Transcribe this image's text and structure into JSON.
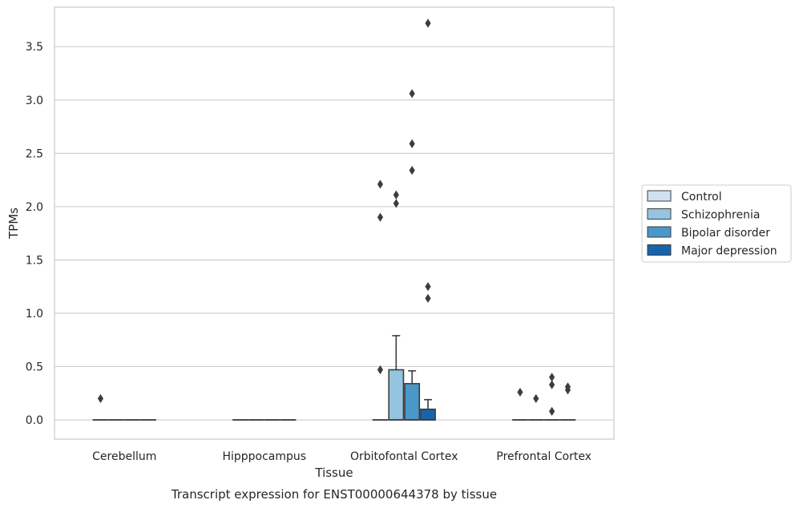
{
  "chart_data": {
    "type": "box",
    "xlabel": "Tissue",
    "ylabel": "TPMs",
    "caption": "Transcript expression for ENST00000644378 by tissue",
    "ylim": [
      -0.18,
      3.87
    ],
    "yticks": [
      0.0,
      0.5,
      1.0,
      1.5,
      2.0,
      2.5,
      3.0,
      3.5
    ],
    "ytick_labels": [
      "0.0",
      "0.5",
      "1.0",
      "1.5",
      "2.0",
      "2.5",
      "3.0",
      "3.5"
    ],
    "grid": "y",
    "legend_position": "right",
    "categories": [
      "Cerebellum",
      "Hipppocampus",
      "Orbitofontal Cortex",
      "Prefrontal Cortex"
    ],
    "series": [
      {
        "name": "Control",
        "color": "#d0e1f2",
        "boxes": [
          {
            "q1": 0,
            "median": 0,
            "q3": 0,
            "whisker_low": 0,
            "whisker_high": 0,
            "outliers": [
              0.2
            ]
          },
          {
            "q1": 0,
            "median": 0,
            "q3": 0,
            "whisker_low": 0,
            "whisker_high": 0,
            "outliers": []
          },
          {
            "q1": 0,
            "median": 0,
            "q3": 0,
            "whisker_low": 0,
            "whisker_high": 0,
            "outliers": [
              0.47,
              1.9,
              2.21
            ]
          },
          {
            "q1": 0,
            "median": 0,
            "q3": 0,
            "whisker_low": 0,
            "whisker_high": 0,
            "outliers": [
              0.26
            ]
          }
        ]
      },
      {
        "name": "Schizophrenia",
        "color": "#94c4df",
        "boxes": [
          {
            "q1": 0,
            "median": 0,
            "q3": 0,
            "whisker_low": 0,
            "whisker_high": 0,
            "outliers": []
          },
          {
            "q1": 0,
            "median": 0,
            "q3": 0,
            "whisker_low": 0,
            "whisker_high": 0,
            "outliers": []
          },
          {
            "q1": 0,
            "median": 0,
            "q3": 0.47,
            "whisker_low": 0,
            "whisker_high": 0.79,
            "outliers": [
              2.03,
              2.11
            ]
          },
          {
            "q1": 0,
            "median": 0,
            "q3": 0,
            "whisker_low": 0,
            "whisker_high": 0,
            "outliers": [
              0.2
            ]
          }
        ]
      },
      {
        "name": "Bipolar disorder",
        "color": "#4a98c9",
        "boxes": [
          {
            "q1": 0,
            "median": 0,
            "q3": 0,
            "whisker_low": 0,
            "whisker_high": 0,
            "outliers": []
          },
          {
            "q1": 0,
            "median": 0,
            "q3": 0,
            "whisker_low": 0,
            "whisker_high": 0,
            "outliers": []
          },
          {
            "q1": 0,
            "median": 0,
            "q3": 0.34,
            "whisker_low": 0,
            "whisker_high": 0.46,
            "outliers": [
              2.34,
              2.59,
              3.06
            ]
          },
          {
            "q1": 0,
            "median": 0,
            "q3": 0,
            "whisker_low": 0,
            "whisker_high": 0,
            "outliers": [
              0.08,
              0.33,
              0.4
            ]
          }
        ]
      },
      {
        "name": "Major depression",
        "color": "#1764ab",
        "boxes": [
          {
            "q1": 0,
            "median": 0,
            "q3": 0,
            "whisker_low": 0,
            "whisker_high": 0,
            "outliers": []
          },
          {
            "q1": 0,
            "median": 0,
            "q3": 0,
            "whisker_low": 0,
            "whisker_high": 0,
            "outliers": []
          },
          {
            "q1": 0,
            "median": 0,
            "q3": 0.1,
            "whisker_low": 0,
            "whisker_high": 0.19,
            "outliers": [
              1.14,
              1.25,
              3.72
            ]
          },
          {
            "q1": 0,
            "median": 0,
            "q3": 0,
            "whisker_low": 0,
            "whisker_high": 0,
            "outliers": [
              0.28,
              0.31
            ]
          }
        ]
      }
    ]
  }
}
